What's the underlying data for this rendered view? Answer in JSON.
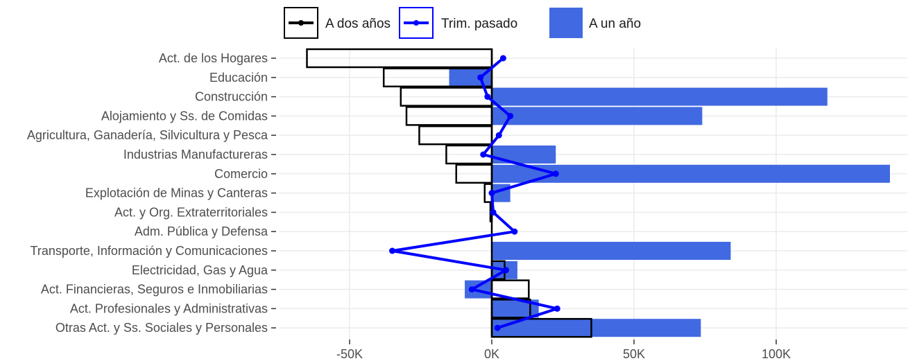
{
  "chart_data": {
    "type": "bar",
    "orientation": "horizontal",
    "categories": [
      "Act. de los Hogares",
      "Educación",
      "Construcción",
      "Alojamiento y Ss. de Comidas",
      "Agricultura, Ganadería, Silvicultura y Pesca",
      "Industrias Manufactureras",
      "Comercio",
      "Explotación de Minas y Canteras",
      "Act. y Org. Extraterritoriales",
      "Adm. Pública y Defensa",
      "Transporte, Información y Comunicaciones",
      "Electricidad, Gas y Agua",
      "Act. Financieras, Seguros e Inmobiliarias",
      "Act. Profesionales y Administrativas",
      "Otras Act. y Ss. Sociales y Personales"
    ],
    "series": [
      {
        "name": "A un año",
        "kind": "bar",
        "color": "#4169e1",
        "values": [
          0,
          -15000,
          118000,
          74000,
          0,
          22500,
          140000,
          6500,
          0,
          0,
          84000,
          9000,
          -9500,
          16500,
          73500
        ]
      },
      {
        "name": "A dos años",
        "kind": "bar-outline",
        "color": "#000000",
        "values": [
          -65000,
          -38000,
          -32000,
          -30000,
          -25500,
          -16000,
          -12500,
          -2500,
          -500,
          0,
          0,
          4500,
          13000,
          13500,
          35000
        ]
      },
      {
        "name": "Trim. pasado",
        "kind": "line",
        "color": "#0000ff",
        "values": [
          4000,
          -4000,
          -1500,
          6500,
          2500,
          -3000,
          22500,
          0,
          500,
          8000,
          -35000,
          5000,
          -7000,
          23000,
          2000
        ]
      }
    ],
    "xlim": [
      -70000,
      145000
    ],
    "xticks": [
      -50000,
      0,
      50000,
      100000
    ],
    "xtick_labels": [
      "-50K",
      "0K",
      "50K",
      "100K"
    ],
    "legend_position": "top",
    "grid": true
  },
  "legend": {
    "dos": "A dos años",
    "trim": "Trim. pasado",
    "unanio": "A un año"
  }
}
